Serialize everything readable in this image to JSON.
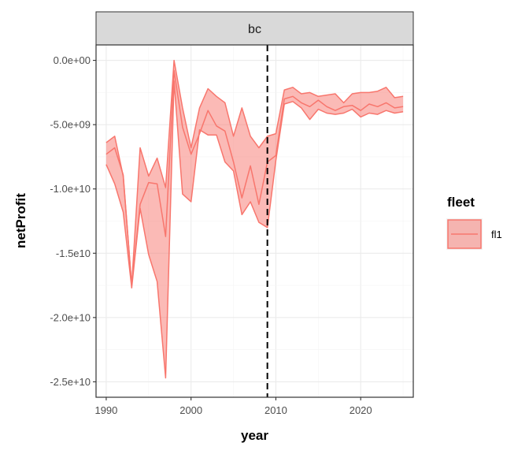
{
  "chart_data": {
    "type": "area",
    "facet_label": "bc",
    "xlabel": "year",
    "ylabel": "netProfit",
    "xlim": [
      1988.8,
      2026.2
    ],
    "ylim": [
      -26200000000.0,
      1200000000.0
    ],
    "x_ticks": [
      1990,
      2000,
      2010,
      2020
    ],
    "x_tick_labels": [
      "1990",
      "2000",
      "2010",
      "2020"
    ],
    "y_ticks": [
      0,
      -5000000000.0,
      -10000000000.0,
      -15000000000.0,
      -20000000000.0,
      -25000000000.0
    ],
    "y_tick_labels": [
      "0.0e+00",
      "-5.0e+09",
      "-1.0e+10",
      "-1.5e10",
      "-2.0e+10",
      "-2.5e+10"
    ],
    "vline": 2009,
    "grid": true,
    "legend": {
      "title": "fleet",
      "position": "right",
      "entries": [
        "fl1"
      ]
    },
    "colors": {
      "fill": "#f8766d",
      "line": "#f8766d",
      "strip_bg": "#d9d9d9"
    },
    "series": [
      {
        "name": "fl1",
        "x": [
          1990,
          1991,
          1992,
          1993,
          1994,
          1995,
          1996,
          1997,
          1998,
          1999,
          2000,
          2001,
          2002,
          2003,
          2004,
          2005,
          2006,
          2007,
          2008,
          2009,
          2010,
          2011,
          2012,
          2013,
          2014,
          2015,
          2016,
          2017,
          2018,
          2019,
          2020,
          2021,
          2022,
          2023,
          2024,
          2025
        ],
        "upper": [
          -6400000000.0,
          -5900000000.0,
          -9000000000.0,
          -17500000000.0,
          -6800000000.0,
          -9000000000.0,
          -7600000000.0,
          -9900000000.0,
          0,
          -3700000000.0,
          -6800000000.0,
          -3700000000.0,
          -2200000000.0,
          -2800000000.0,
          -3300000000.0,
          -5900000000.0,
          -3700000000.0,
          -5900000000.0,
          -6800000000.0,
          -5900000000.0,
          -5700000000.0,
          -2300000000.0,
          -2100000000.0,
          -2600000000.0,
          -2500000000.0,
          -2800000000.0,
          -2700000000.0,
          -2600000000.0,
          -3300000000.0,
          -2600000000.0,
          -2500000000.0,
          -2500000000.0,
          -2400000000.0,
          -2100000000.0,
          -2900000000.0,
          -2800000000.0
        ],
        "mid": [
          -7300000000.0,
          -6800000000.0,
          -8900000000.0,
          -17500000000.0,
          -11200000000.0,
          -9500000000.0,
          -9600000000.0,
          -13700000000.0,
          -800000000.0,
          -5200000000.0,
          -7300000000.0,
          -5700000000.0,
          -3900000000.0,
          -5100000000.0,
          -5500000000.0,
          -7900000000.0,
          -10700000000.0,
          -8200000000.0,
          -11200000000.0,
          -7900000000.0,
          -7400000000.0,
          -3000000000.0,
          -2800000000.0,
          -3300000000.0,
          -3600000000.0,
          -3100000000.0,
          -3600000000.0,
          -3900000000.0,
          -3600000000.0,
          -3500000000.0,
          -3900000000.0,
          -3400000000.0,
          -3600000000.0,
          -3300000000.0,
          -3700000000.0,
          -3600000000.0
        ],
        "lower": [
          -8100000000.0,
          -9600000000.0,
          -11800000000.0,
          -17700000000.0,
          -11500000000.0,
          -15100000000.0,
          -17200000000.0,
          -24700000000.0,
          -1600000000.0,
          -10400000000.0,
          -11000000000.0,
          -5400000000.0,
          -5800000000.0,
          -5800000000.0,
          -7900000000.0,
          -8600000000.0,
          -12000000000.0,
          -11000000000.0,
          -12600000000.0,
          -13000000000.0,
          -7800000000.0,
          -3400000000.0,
          -3200000000.0,
          -3700000000.0,
          -4600000000.0,
          -3800000000.0,
          -4100000000.0,
          -4200000000.0,
          -4100000000.0,
          -3800000000.0,
          -4400000000.0,
          -4100000000.0,
          -4200000000.0,
          -3900000000.0,
          -4100000000.0,
          -4000000000.0
        ]
      }
    ]
  }
}
